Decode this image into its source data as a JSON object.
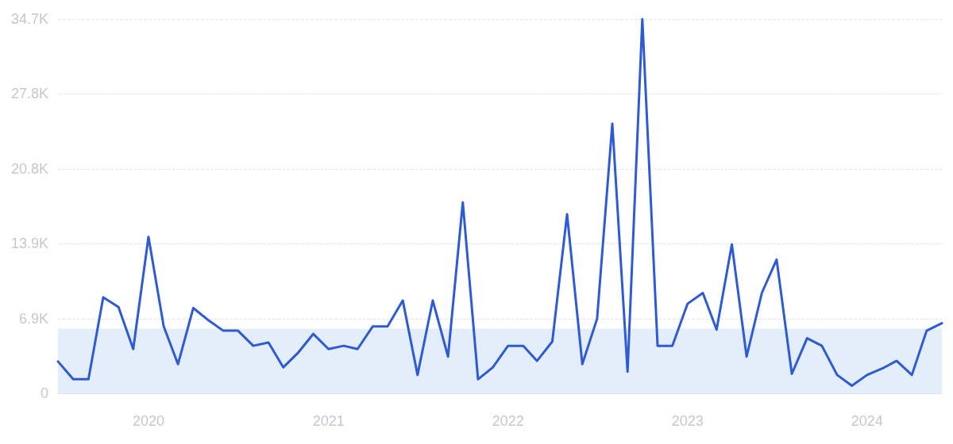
{
  "chart_data": {
    "type": "line",
    "color": "#2d5bd8",
    "x": [
      "2019-07",
      "2019-08",
      "2019-09",
      "2019-10",
      "2019-11",
      "2019-12",
      "2020-01",
      "2020-02",
      "2020-03",
      "2020-04",
      "2020-05",
      "2020-06",
      "2020-07",
      "2020-08",
      "2020-09",
      "2020-10",
      "2020-11",
      "2020-12",
      "2021-01",
      "2021-02",
      "2021-03",
      "2021-04",
      "2021-05",
      "2021-06",
      "2021-07",
      "2021-08",
      "2021-09",
      "2021-10",
      "2021-11",
      "2021-12",
      "2022-01",
      "2022-02",
      "2022-03",
      "2022-04",
      "2022-05",
      "2022-06",
      "2022-07",
      "2022-08",
      "2022-09",
      "2022-10",
      "2022-11",
      "2022-12",
      "2023-01",
      "2023-02",
      "2023-03",
      "2023-04",
      "2023-05",
      "2023-06",
      "2023-07",
      "2023-08",
      "2023-09",
      "2023-10",
      "2023-11",
      "2023-12",
      "2024-01",
      "2024-02",
      "2024-03",
      "2024-04",
      "2024-05",
      "2024-06"
    ],
    "values": [
      2950,
      1300,
      1300,
      8900,
      8000,
      4100,
      14500,
      6200,
      2700,
      7900,
      6800,
      5800,
      5800,
      4400,
      4700,
      2400,
      3800,
      5500,
      4100,
      4400,
      4100,
      6200,
      6200,
      8600,
      1700,
      8600,
      3400,
      17700,
      1300,
      2400,
      4400,
      4400,
      3000,
      4800,
      16600,
      2700,
      6900,
      25000,
      2000,
      34700,
      4400,
      4400,
      8300,
      9300,
      5900,
      13800,
      3400,
      9300,
      12400,
      1800,
      5100,
      4400,
      1700,
      700,
      1700,
      2300,
      3000,
      1700,
      5800,
      6500
    ],
    "xlim": [
      "2019-07",
      "2024-06"
    ],
    "xticks": [
      "2020",
      "2021",
      "2022",
      "2023",
      "2024"
    ],
    "ylim": [
      0,
      34700
    ],
    "yticks": [
      0,
      {
        "value": 6900,
        "label": "6.9K"
      },
      {
        "value": 13900,
        "label": "13.9K"
      },
      {
        "value": 20800,
        "label": "20.8K"
      },
      {
        "value": 27800,
        "label": "27.8K"
      },
      {
        "value": 34700,
        "label": "34.7K"
      }
    ],
    "bands": [
      {
        "axis": "y",
        "from": 0,
        "to": 6000,
        "color": "#e4eefb"
      }
    ],
    "grid": "y",
    "marker": "none",
    "line_style": "solid"
  }
}
